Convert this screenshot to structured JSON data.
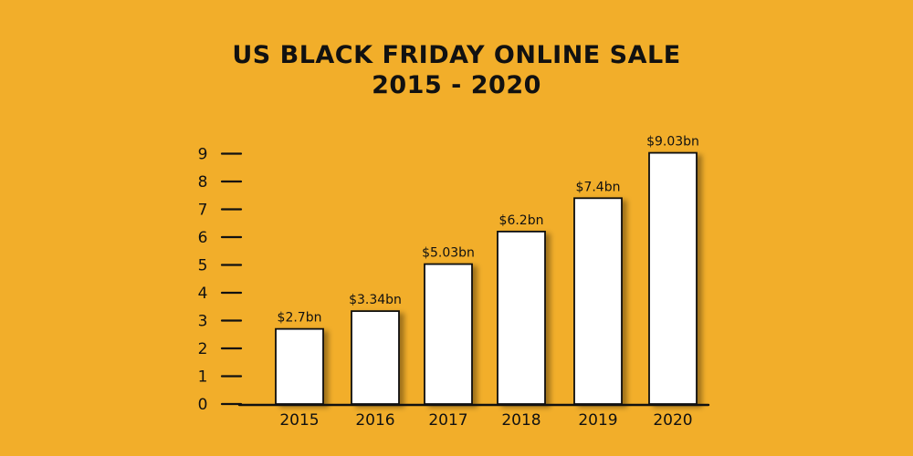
{
  "colors": {
    "background": "#F2AE2A",
    "bar_fill": "#FFFFFF",
    "ink": "#111111"
  },
  "chart_data": {
    "type": "bar",
    "title": "US BLACK FRIDAY ONLINE SALE",
    "subtitle": "2015 - 2020",
    "xlabel": "",
    "ylabel": "",
    "categories": [
      "2015",
      "2016",
      "2017",
      "2018",
      "2019",
      "2020"
    ],
    "values": [
      2.7,
      3.34,
      5.03,
      6.2,
      7.4,
      9.03
    ],
    "data_labels": [
      "$2.7bn",
      "$3.34bn",
      "$5.03bn",
      "$6.2bn",
      "$7.4bn",
      "$9.03bn"
    ],
    "yticks": [
      0,
      1,
      2,
      3,
      4,
      5,
      6,
      7,
      8,
      9
    ],
    "ylim": [
      0,
      9
    ],
    "grid": false,
    "legend": "none"
  }
}
